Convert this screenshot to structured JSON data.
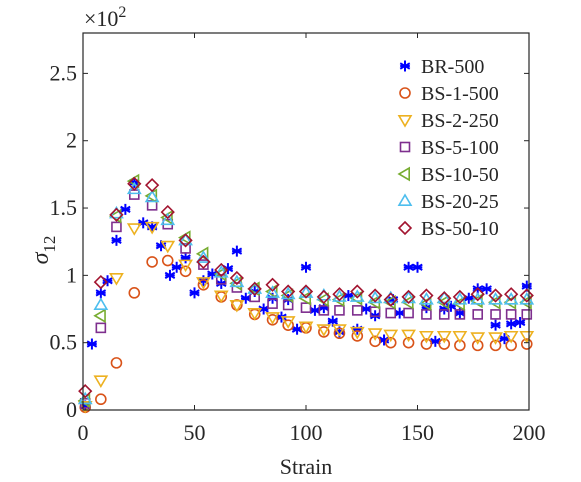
{
  "chart_data": {
    "type": "scatter",
    "title": "",
    "xlabel": "Strain",
    "ylabel": "σ",
    "ylabel_sub": "12",
    "multiplier_base": "×10",
    "multiplier_exp": "2",
    "xlim": [
      0,
      200
    ],
    "ylim": [
      0,
      2.8
    ],
    "xticks": [
      0,
      50,
      100,
      150,
      200
    ],
    "xtick_labels": [
      "0",
      "50",
      "100",
      "150",
      "200"
    ],
    "yticks": [
      0,
      0.5,
      1,
      1.5,
      2,
      2.5
    ],
    "ytick_labels": [
      "0",
      "0.5",
      "1",
      "1.5",
      "2",
      "2.5"
    ],
    "grid": false,
    "legend_position": "top-right",
    "series": [
      {
        "name": "BR-500",
        "marker": "asterisk",
        "color": "#0000ff",
        "x": [
          1,
          4,
          8,
          11,
          15,
          19,
          23,
          27,
          31,
          35,
          39,
          42,
          46,
          50,
          54,
          58,
          62,
          65,
          69,
          73,
          77,
          81,
          85,
          89,
          92,
          96,
          100,
          104,
          108,
          112,
          115,
          119,
          123,
          127,
          131,
          135,
          139,
          142,
          146,
          150,
          154,
          158,
          162,
          165,
          169,
          173,
          177,
          181,
          185,
          189,
          192,
          196,
          199
        ],
        "y": [
          0.03,
          0.49,
          0.87,
          0.96,
          1.26,
          1.49,
          1.69,
          1.39,
          1.36,
          1.22,
          1.0,
          1.06,
          1.13,
          0.87,
          0.96,
          1.01,
          0.94,
          1.05,
          1.18,
          0.83,
          0.88,
          0.75,
          0.83,
          0.69,
          0.82,
          0.6,
          1.06,
          0.74,
          0.76,
          0.66,
          0.58,
          0.85,
          0.6,
          0.75,
          0.7,
          0.52,
          0.82,
          0.72,
          1.06,
          1.06,
          0.76,
          0.51,
          0.75,
          0.77,
          0.72,
          0.83,
          0.9,
          0.9,
          0.63,
          0.53,
          0.64,
          0.65,
          0.92
        ]
      },
      {
        "name": "BS-1-500",
        "marker": "circle",
        "color": "#d95319",
        "x": [
          1,
          8,
          15,
          23,
          31,
          38,
          46,
          54,
          62,
          69,
          77,
          85,
          92,
          100,
          108,
          115,
          123,
          131,
          138,
          146,
          154,
          162,
          169,
          177,
          185,
          192,
          199
        ],
        "y": [
          0.02,
          0.08,
          0.35,
          0.87,
          1.1,
          1.11,
          1.03,
          0.93,
          0.84,
          0.78,
          0.71,
          0.67,
          0.63,
          0.61,
          0.58,
          0.57,
          0.55,
          0.51,
          0.5,
          0.5,
          0.49,
          0.49,
          0.48,
          0.48,
          0.48,
          0.48,
          0.49
        ]
      },
      {
        "name": "BS-2-250",
        "marker": "triangle-down",
        "color": "#edb120",
        "x": [
          1,
          8,
          15,
          23,
          31,
          38,
          46,
          54,
          62,
          69,
          77,
          85,
          92,
          100,
          108,
          115,
          123,
          131,
          138,
          146,
          154,
          162,
          169,
          177,
          185,
          192,
          199
        ],
        "y": [
          0.03,
          0.22,
          0.98,
          1.35,
          1.36,
          1.22,
          1.08,
          0.95,
          0.85,
          0.78,
          0.72,
          0.69,
          0.66,
          0.62,
          0.6,
          0.6,
          0.58,
          0.57,
          0.56,
          0.56,
          0.55,
          0.55,
          0.55,
          0.54,
          0.54,
          0.55,
          0.55
        ]
      },
      {
        "name": "BS-5-100",
        "marker": "square",
        "color": "#7e2f8e",
        "x": [
          1,
          8,
          15,
          23,
          31,
          38,
          46,
          54,
          62,
          69,
          77,
          85,
          92,
          100,
          108,
          115,
          123,
          131,
          138,
          146,
          154,
          162,
          169,
          177,
          185,
          192,
          199
        ],
        "y": [
          0.05,
          0.61,
          1.36,
          1.6,
          1.52,
          1.38,
          1.2,
          1.08,
          0.97,
          0.91,
          0.84,
          0.79,
          0.78,
          0.76,
          0.74,
          0.74,
          0.74,
          0.73,
          0.72,
          0.72,
          0.71,
          0.71,
          0.71,
          0.71,
          0.71,
          0.71,
          0.71
        ]
      },
      {
        "name": "BS-10-50",
        "marker": "triangle-left",
        "color": "#77ac30",
        "x": [
          1,
          8,
          15,
          23,
          31,
          38,
          46,
          54,
          62,
          69,
          77,
          85,
          92,
          100,
          108,
          115,
          123,
          131,
          138,
          146,
          154,
          162,
          169,
          177,
          185,
          192,
          199
        ],
        "y": [
          0.07,
          0.7,
          1.44,
          1.7,
          1.59,
          1.43,
          1.28,
          1.16,
          1.01,
          0.94,
          0.9,
          0.88,
          0.85,
          0.83,
          0.82,
          0.82,
          0.83,
          0.8,
          0.8,
          0.8,
          0.79,
          0.8,
          0.79,
          0.81,
          0.8,
          0.8,
          0.8
        ]
      },
      {
        "name": "BS-20-25",
        "marker": "triangle-up",
        "color": "#4dbeee",
        "x": [
          1,
          8,
          15,
          23,
          31,
          38,
          46,
          54,
          62,
          69,
          77,
          85,
          92,
          100,
          108,
          115,
          123,
          131,
          138,
          146,
          154,
          162,
          169,
          177,
          185,
          192,
          199
        ],
        "y": [
          0.08,
          0.78,
          1.46,
          1.64,
          1.58,
          1.41,
          1.26,
          1.13,
          1.02,
          0.95,
          0.9,
          0.87,
          0.86,
          0.87,
          0.85,
          0.84,
          0.84,
          0.83,
          0.83,
          0.83,
          0.82,
          0.83,
          0.82,
          0.82,
          0.82,
          0.82,
          0.82
        ]
      },
      {
        "name": "BS-50-10",
        "marker": "diamond",
        "color": "#a2142f",
        "x": [
          1,
          8,
          15,
          23,
          31,
          38,
          46,
          54,
          62,
          69,
          77,
          85,
          92,
          100,
          108,
          115,
          123,
          131,
          138,
          146,
          154,
          162,
          169,
          177,
          185,
          192,
          199
        ],
        "y": [
          0.14,
          0.95,
          1.45,
          1.68,
          1.67,
          1.47,
          1.26,
          1.1,
          1.04,
          0.98,
          0.9,
          0.93,
          0.88,
          0.88,
          0.84,
          0.86,
          0.88,
          0.85,
          0.82,
          0.84,
          0.85,
          0.83,
          0.84,
          0.86,
          0.85,
          0.86,
          0.85
        ]
      }
    ]
  }
}
